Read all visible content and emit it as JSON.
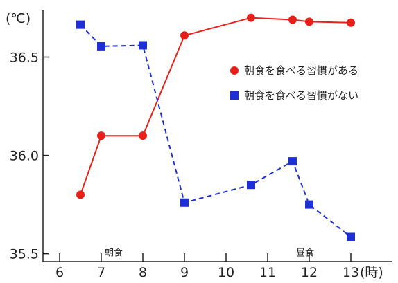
{
  "chart_data": {
    "type": "line",
    "y_unit": "(℃)",
    "x_unit": "(時)",
    "xlim": [
      5.6,
      14.0
    ],
    "ylim": [
      35.46,
      36.72
    ],
    "x_ticks": [
      6,
      7,
      8,
      9,
      10,
      11,
      12,
      13
    ],
    "x_tick_labels": [
      "6",
      "7",
      "8",
      "9",
      "10",
      "11",
      "12",
      "13"
    ],
    "y_ticks": [
      35.5,
      36.0,
      36.5
    ],
    "y_tick_labels": [
      "35.5",
      "36.0",
      "36.5"
    ],
    "grid": false,
    "legend_position": "right",
    "annotations": [
      {
        "text": "朝食",
        "x": 7.3,
        "y": 35.5
      },
      {
        "text": "昼食",
        "x": 11.9,
        "y": 35.5
      }
    ],
    "series": [
      {
        "name": "朝食を食べる習慣がある",
        "color": "#e8201a",
        "marker": "circle",
        "line_style": "solid",
        "x": [
          6.5,
          7.0,
          8.0,
          9.0,
          10.6,
          11.6,
          12.0,
          13.0
        ],
        "y": [
          35.8,
          36.1,
          36.1,
          36.61,
          36.7,
          36.69,
          36.68,
          36.675
        ]
      },
      {
        "name": "朝食を食べる習慣がない",
        "color": "#1f2fd6",
        "marker": "square",
        "line_style": "dashed",
        "x": [
          6.5,
          7.0,
          8.0,
          9.0,
          10.6,
          11.6,
          12.0,
          13.0
        ],
        "y": [
          36.665,
          36.555,
          36.56,
          35.76,
          35.85,
          35.97,
          35.75,
          35.585
        ]
      }
    ]
  }
}
